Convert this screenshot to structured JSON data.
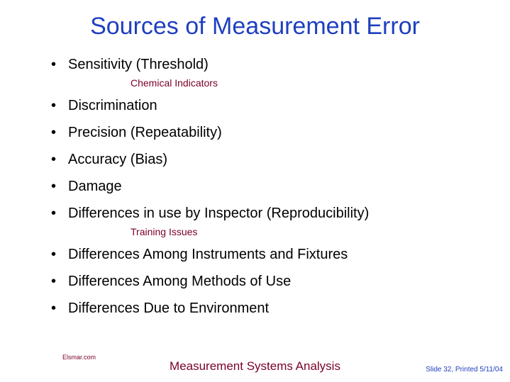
{
  "colors": {
    "title": "#1f3fbf",
    "body": "#000000",
    "accent": "#7a0026",
    "footer_center": "#7a0026",
    "footer_right": "#1f3fbf",
    "footer_left": "#7a0026",
    "background": "#ffffff"
  },
  "title": "Sources of Measurement Error",
  "items": [
    {
      "text": "Sensitivity (Threshold)",
      "sub": "Chemical Indicators"
    },
    {
      "text": "Discrimination"
    },
    {
      "text": "Precision (Repeatability)"
    },
    {
      "text": "Accuracy (Bias)"
    },
    {
      "text": "Damage"
    },
    {
      "text": "Differences in use by Inspector (Reproducibility)",
      "sub": "Training Issues"
    },
    {
      "text": "Differences Among Instruments and Fixtures"
    },
    {
      "text": "Differences Among Methods of Use"
    },
    {
      "text": "Differences Due to Environment"
    }
  ],
  "footer": {
    "left": "Elsmar.com",
    "center": "Measurement Systems Analysis",
    "right": "Slide 32, Printed 5/11/04"
  }
}
